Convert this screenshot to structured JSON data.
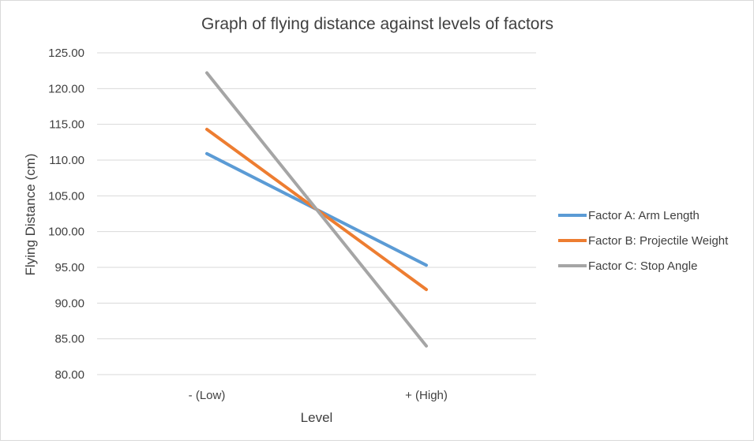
{
  "chart_data": {
    "type": "line",
    "title": "Graph of flying distance against levels of factors",
    "xlabel": "Level",
    "ylabel": "Flying Distance (cm)",
    "categories": [
      "- (Low)",
      "+ (High)"
    ],
    "ylim": [
      80,
      125
    ],
    "yticks": [
      "80.00",
      "85.00",
      "90.00",
      "95.00",
      "100.00",
      "105.00",
      "110.00",
      "115.00",
      "120.00",
      "125.00"
    ],
    "grid": true,
    "legend_position": "right",
    "series": [
      {
        "name": "Factor A: Arm Length",
        "values": [
          110.9,
          95.3
        ],
        "color": "#5b9bd5"
      },
      {
        "name": "Factor B: Projectile Weight",
        "values": [
          114.3,
          91.9
        ],
        "color": "#ed7d31"
      },
      {
        "name": "Factor C: Stop Angle",
        "values": [
          122.2,
          84.0
        ],
        "color": "#a5a5a5"
      }
    ]
  }
}
